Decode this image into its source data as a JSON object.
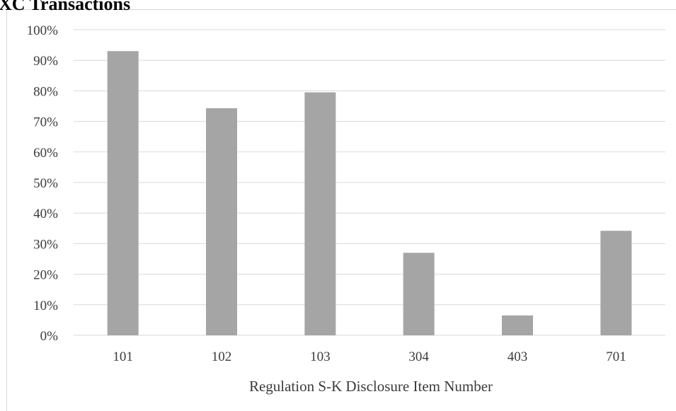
{
  "chart_data": {
    "type": "bar",
    "title": "XC Transactions",
    "xlabel": "Regulation S-K Disclosure Item Number",
    "ylabel": "",
    "categories": [
      "101",
      "102",
      "103",
      "304",
      "403",
      "701"
    ],
    "values": [
      93,
      74.3,
      79.5,
      27,
      6.5,
      34.2
    ],
    "ylim": [
      0,
      100
    ],
    "y_ticks": [
      "0%",
      "10%",
      "20%",
      "30%",
      "40%",
      "50%",
      "60%",
      "70%",
      "80%",
      "90%",
      "100%"
    ],
    "grid": true,
    "legend": "none",
    "bar_color": "#a5a5a5",
    "grid_color": "#d9d9d9"
  }
}
